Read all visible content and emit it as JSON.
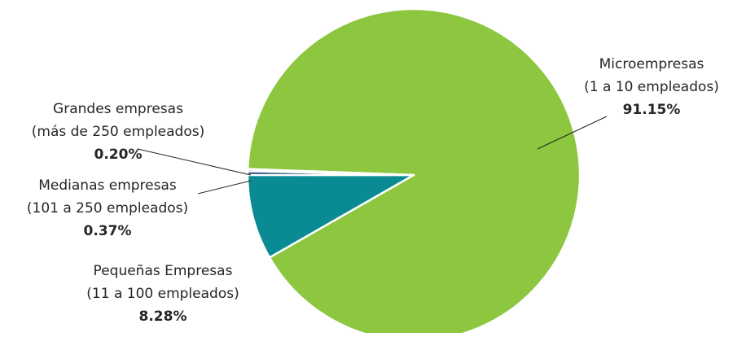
{
  "chart_data": {
    "type": "pie",
    "title": "",
    "slices": [
      {
        "name": "Microempresas",
        "sublabel": "(1 a 10 empleados)",
        "value": 91.15,
        "value_label": "91.15%",
        "color": "#8DC63F"
      },
      {
        "name": "Pequeñas Empresas",
        "sublabel": "(11 a 100 empleados)",
        "value": 8.28,
        "value_label": "8.28%",
        "color": "#0A8A92"
      },
      {
        "name": "Medianas empresas",
        "sublabel": "(101 a 250 empleados)",
        "value": 0.37,
        "value_label": "0.37%",
        "color": "#1F4E79"
      },
      {
        "name": "Grandes empresas",
        "sublabel": "(más de 250 empleados)",
        "value": 0.2,
        "value_label": "0.20%",
        "color": "#8B1A1A"
      }
    ],
    "legend": "none",
    "data_labels": "outside with leader lines"
  }
}
